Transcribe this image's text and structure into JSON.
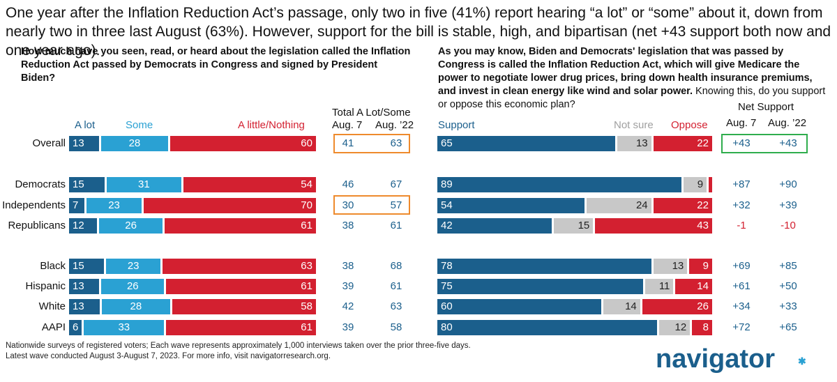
{
  "headline": "One year after the Inflation Reduction Act’s passage, only two in five (41%) report hearing “a lot” or “some” about it, down from nearly two in three last August (63%). However, support for the bill is stable, high, and bipartisan (net +43 support both now and one year ago).",
  "left_question": "How much have you seen, read, or heard about the legislation called the Inflation Reduction Act passed by Democrats in Congress and signed by President Biden?",
  "right_question_bold": "As you may know, Biden and Democrats' legislation that was passed by Congress is called the Inflation Reduction Act, which will give Medicare the power to negotiate lower drug prices, bring down health insurance premiums, and invest in clean energy like wind and solar power.",
  "right_question_plain": " Knowing this, do you support or oppose this economic plan?",
  "left_headers": {
    "a_lot": "A lot",
    "some": "Some",
    "little": "A little/Nothing"
  },
  "total_header": {
    "title": "Total A Lot/Some",
    "col1": "Aug. 7",
    "col2": "Aug. ’22"
  },
  "right_headers": {
    "support": "Support",
    "not_sure": "Not sure",
    "oppose": "Oppose"
  },
  "net_header": {
    "title": "Net Support",
    "col1": "Aug. 7",
    "col2": "Aug. ’22"
  },
  "footnote_line1": "Nationwide surveys of registered voters; Each wave represents approximately 1,000 interviews taken over the prior three-five days.",
  "footnote_line2": "Latest wave conducted August 3-August 7, 2023. For more info, visit navigatorresearch.org.",
  "logo": "navigator",
  "colors": {
    "navy": "#1b5f8c",
    "sky": "#2aa1d3",
    "red": "#d32030",
    "grey": "#c8c8c8",
    "orange": "#ee8a2c",
    "green": "#2fad4d"
  },
  "chart_data": [
    {
      "type": "bar",
      "stacked": true,
      "orientation": "horizontal",
      "categories": [
        "Overall",
        "Democrats",
        "Independents",
        "Republicans",
        "Black",
        "Hispanic",
        "White",
        "AAPI"
      ],
      "series": [
        {
          "name": "A lot",
          "values": [
            13,
            15,
            7,
            12,
            15,
            13,
            13,
            6
          ]
        },
        {
          "name": "Some",
          "values": [
            28,
            31,
            23,
            26,
            23,
            26,
            28,
            33
          ]
        },
        {
          "name": "A little/Nothing",
          "values": [
            60,
            54,
            70,
            61,
            63,
            61,
            58,
            61
          ]
        }
      ],
      "total_a_lot_some": {
        "title": "Total A Lot/Some",
        "aug_7": [
          41,
          46,
          30,
          38,
          38,
          39,
          42,
          39
        ],
        "aug_22": [
          63,
          67,
          57,
          61,
          68,
          61,
          63,
          58
        ]
      }
    },
    {
      "type": "bar",
      "stacked": true,
      "orientation": "horizontal",
      "categories": [
        "Overall",
        "Democrats",
        "Independents",
        "Republicans",
        "Black",
        "Hispanic",
        "White",
        "AAPI"
      ],
      "series": [
        {
          "name": "Support",
          "values": [
            65,
            89,
            54,
            42,
            78,
            75,
            60,
            80
          ]
        },
        {
          "name": "Not sure",
          "values": [
            13,
            9,
            24,
            15,
            13,
            11,
            14,
            12
          ]
        },
        {
          "name": "Oppose",
          "values": [
            22,
            2,
            22,
            43,
            9,
            14,
            26,
            8
          ],
          "labels": [
            "22",
            "",
            "22",
            "43",
            "9",
            "14",
            "26",
            "8"
          ]
        }
      ],
      "net_support": {
        "title": "Net Support",
        "aug_7": [
          "+43",
          "+87",
          "+32",
          "-1",
          "+69",
          "+61",
          "+34",
          "+72"
        ],
        "aug_22": [
          "+43",
          "+90",
          "+39",
          "-10",
          "+85",
          "+50",
          "+33",
          "+65"
        ]
      }
    }
  ]
}
